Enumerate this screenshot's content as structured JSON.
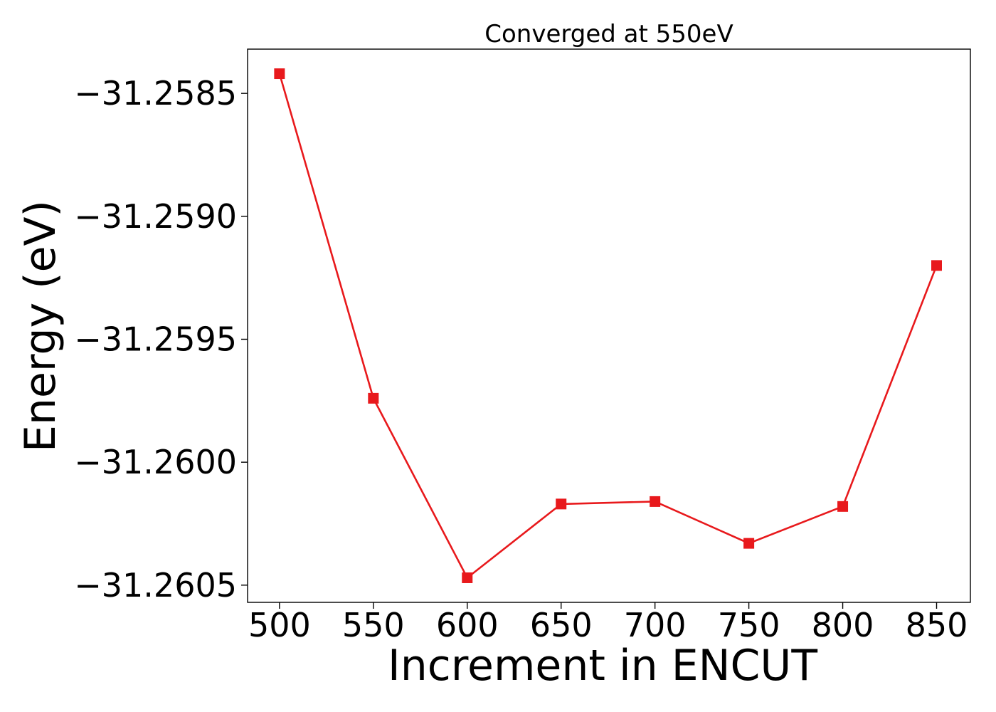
{
  "chart_data": {
    "type": "line",
    "title": "Converged at 550eV",
    "xlabel": "Increment in ENCUT",
    "ylabel": "Energy (eV)",
    "x": [
      500,
      550,
      600,
      650,
      700,
      750,
      800,
      850
    ],
    "series": [
      {
        "values": [
          -31.25842,
          -31.25974,
          -31.26047,
          -31.26017,
          -31.26016,
          -31.26033,
          -31.26018,
          -31.2592
        ],
        "color": "#e8191c",
        "marker": "square"
      }
    ],
    "xticks": [
      500,
      550,
      600,
      650,
      700,
      750,
      800,
      850
    ],
    "xtick_labels": [
      "500",
      "550",
      "600",
      "650",
      "700",
      "750",
      "800",
      "850"
    ],
    "yticks": [
      -31.2585,
      -31.259,
      -31.2595,
      -31.26,
      -31.2605
    ],
    "ytick_labels": [
      "−31.2585",
      "−31.2590",
      "−31.2595",
      "−31.2600",
      "−31.2605"
    ],
    "xlim": [
      483,
      868
    ],
    "ylim": [
      -31.26057,
      -31.25832
    ],
    "grid": false,
    "legend": "none"
  }
}
